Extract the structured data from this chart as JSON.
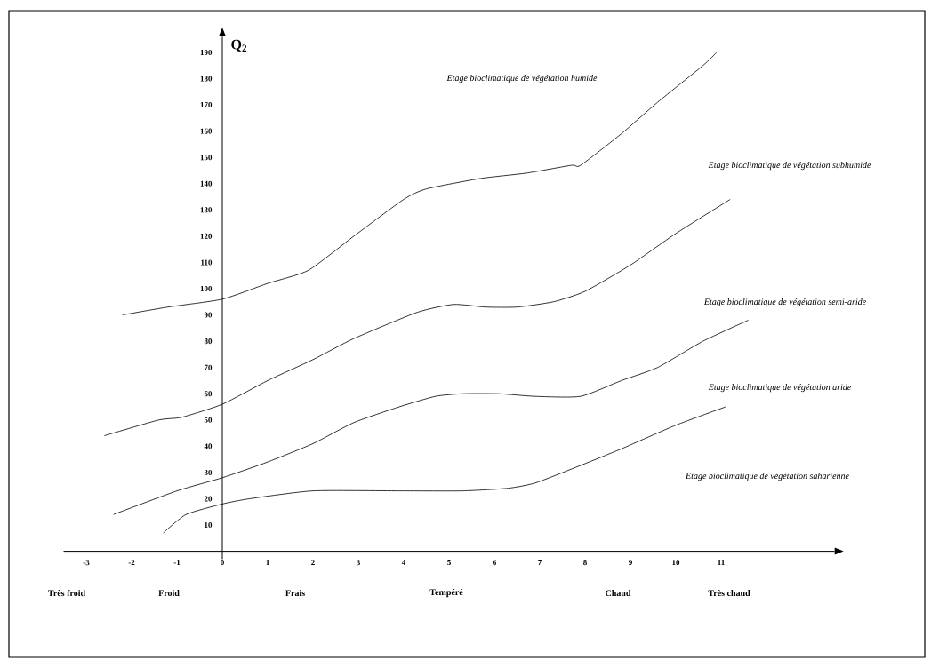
{
  "chart_data": {
    "type": "line",
    "ylabel": "Q$_{2}$",
    "xlim": [
      -3.5,
      13.5
    ],
    "ylim": [
      -3,
      196
    ],
    "xticks": [
      -3,
      -2,
      -1,
      0,
      1,
      2,
      3,
      4,
      5,
      6,
      7,
      8,
      9,
      10,
      11
    ],
    "yticks": [
      10,
      20,
      30,
      40,
      50,
      60,
      70,
      80,
      90,
      100,
      110,
      120,
      130,
      140,
      150,
      160,
      170,
      180,
      190
    ],
    "series": [
      {
        "color": "#000000",
        "x": [
          -2.2,
          -1.2,
          0,
          1,
          1.9,
          2.9,
          4,
          4.5,
          5.7,
          6.7,
          7.7,
          7.9,
          8.8,
          9.6,
          10.6,
          10.9
        ],
        "values": [
          90,
          93,
          96,
          102,
          107,
          120,
          134,
          138,
          142,
          144,
          147,
          147,
          159,
          171,
          185,
          190
        ]
      },
      {
        "color": "#000000",
        "x": [
          -2.6,
          -1.4,
          -0.9,
          0,
          1,
          2,
          2.9,
          4.3,
          5.1,
          5.8,
          6.5,
          7.3,
          8,
          9,
          10,
          11.2
        ],
        "values": [
          44,
          50,
          51,
          56,
          65,
          73,
          81,
          91,
          94,
          93,
          93,
          95,
          99,
          109,
          121,
          134
        ]
      },
      {
        "color": "#000000",
        "x": [
          -2.4,
          -1,
          0,
          1,
          2,
          2.9,
          3.9,
          4.7,
          5.3,
          6.1,
          6.9,
          7.9,
          8.8,
          9.6,
          10.6,
          11.6
        ],
        "values": [
          14,
          23,
          28,
          34,
          41,
          49,
          55,
          59,
          60,
          60,
          59,
          59,
          65,
          70,
          80,
          88
        ]
      },
      {
        "color": "#000000",
        "x": [
          -1.3,
          -0.8,
          0,
          0.6,
          2,
          3.9,
          5.3,
          6.3,
          6.9,
          7.8,
          8.8,
          10,
          11.1
        ],
        "values": [
          7,
          14,
          18,
          20,
          23,
          23,
          23,
          24,
          26,
          32,
          39,
          48,
          55
        ]
      }
    ],
    "annotations": [
      "Etage bioclimatique de végétation humide",
      "Etage bioclimatique de végétation subhumide",
      "Etage bioclimatique de végétation semi-aride",
      "Etage bioclimatique de végétation aride",
      "Etage bioclimatique de végétation saharienne",
      "Très froid",
      "Froid",
      "Frais",
      "Tempéré",
      "Chaud",
      "Très chaud"
    ]
  }
}
